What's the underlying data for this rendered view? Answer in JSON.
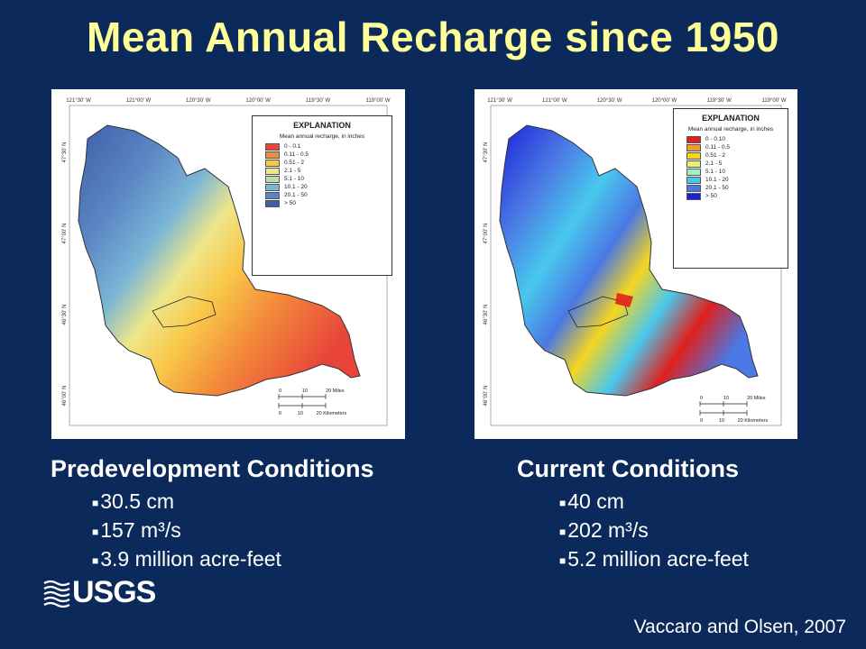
{
  "title": "Mean Annual Recharge since 1950",
  "maps": [
    {
      "id": "predevelopment",
      "x_ticks": [
        "121°30' W",
        "121°00' W",
        "120°30' W",
        "120°00' W",
        "119°30' W",
        "119°00' W"
      ],
      "y_ticks": [
        "47°30' N",
        "47°00' N",
        "46°30' N",
        "46°00' N"
      ],
      "legend": {
        "title": "EXPLANATION",
        "subtitle": "Mean annual recharge, in inches",
        "classes": [
          {
            "label": "0 - 0.1",
            "color": "#e8443a"
          },
          {
            "label": "0.11 - 0.5",
            "color": "#f28a3a"
          },
          {
            "label": "0.51 - 2",
            "color": "#f8c849"
          },
          {
            "label": "2.1 - 5",
            "color": "#eee68a"
          },
          {
            "label": "5.1 - 10",
            "color": "#b9dcb0"
          },
          {
            "label": "10.1 - 20",
            "color": "#7ab6d6"
          },
          {
            "label": "20.1 - 50",
            "color": "#5b86c4"
          },
          {
            "label": "> 50",
            "color": "#3f5ea8"
          }
        ]
      },
      "scale": {
        "miles": [
          "0",
          "10",
          "20 Miles"
        ],
        "km": [
          "0",
          "10",
          "20 Kilometers"
        ]
      }
    },
    {
      "id": "current",
      "x_ticks": [
        "121°30' W",
        "121°00' W",
        "120°30' W",
        "120°00' W",
        "119°30' W",
        "119°00' W"
      ],
      "y_ticks": [
        "47°30' N",
        "47°00' N",
        "46°30' N",
        "46°00' N"
      ],
      "legend": {
        "title": "EXPLANATION",
        "subtitle": "Mean annual recharge, in inches",
        "classes": [
          {
            "label": "0 - 0.10",
            "color": "#e0201c"
          },
          {
            "label": "0.11 - 0.5",
            "color": "#f39a2a"
          },
          {
            "label": "0.51 - 2",
            "color": "#f6d520"
          },
          {
            "label": "2.1 - 5",
            "color": "#e4f27a"
          },
          {
            "label": "5.1 - 10",
            "color": "#9ef0c8"
          },
          {
            "label": "10.1 - 20",
            "color": "#49c8ee"
          },
          {
            "label": "20.1 - 50",
            "color": "#4a78e4"
          },
          {
            "label": "> 50",
            "color": "#1a22d8"
          }
        ]
      },
      "scale": {
        "miles": [
          "0",
          "10",
          "20 Miles"
        ],
        "km": [
          "0",
          "10",
          "20 Kilometers"
        ]
      }
    }
  ],
  "conditions": {
    "left": {
      "heading": "Predevelopment Conditions",
      "items": [
        "30.5 cm",
        "157 m³/s",
        "3.9 million acre-feet"
      ]
    },
    "right": {
      "heading": "Current Conditions",
      "items": [
        "40 cm",
        "202 m³/s",
        "5.2 million acre-feet"
      ]
    }
  },
  "logo": {
    "text": "USGS"
  },
  "citation": "Vaccaro and Olsen, 2007"
}
